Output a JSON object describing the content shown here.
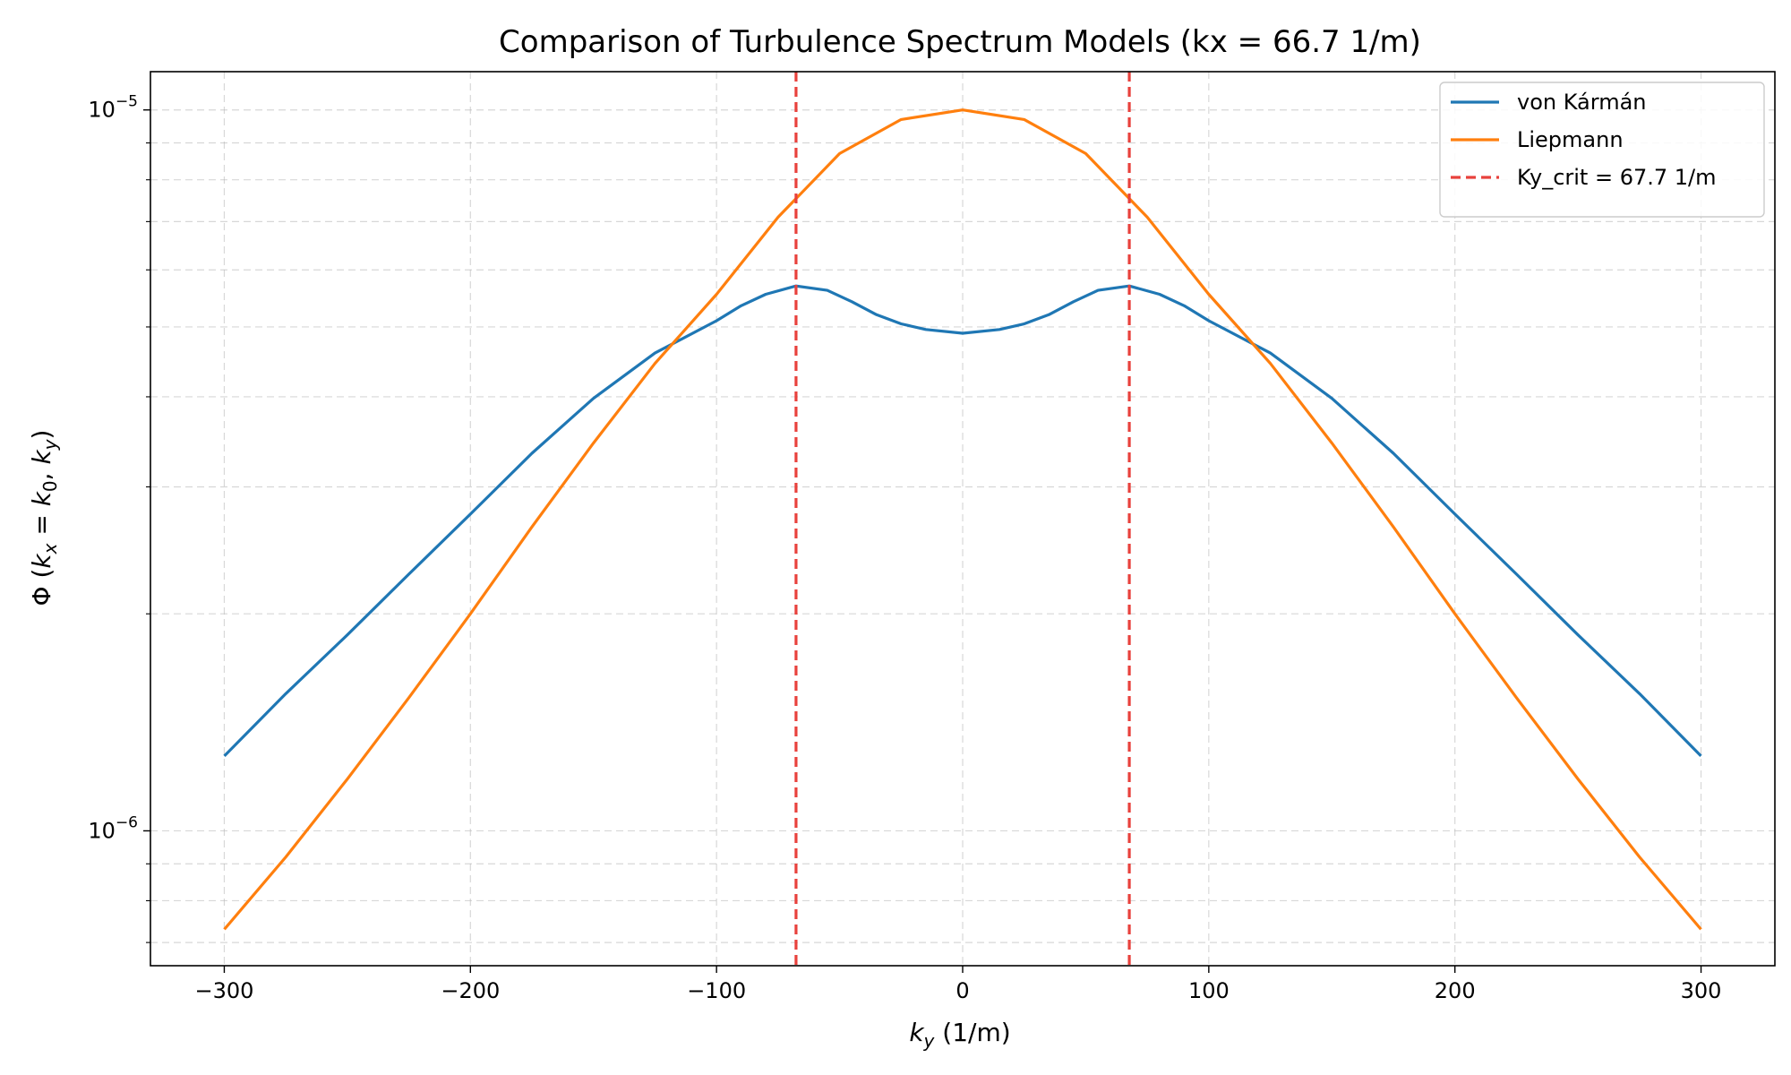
{
  "chart_data": {
    "type": "line",
    "title": "Comparison of Turbulence Spectrum Models (kx = 66.7 1/m)",
    "xlabel": {
      "symbol": "k",
      "sub": "y",
      "unit": " (1/m)"
    },
    "ylabel": {
      "prefix": "Φ (",
      "k1": "k",
      "s1": "x",
      "eq": " = ",
      "k0": "k",
      "s0": "0",
      "sep": ", ",
      "k2": "k",
      "s2": "y",
      "suffix": ")"
    },
    "x_scale": "linear",
    "y_scale": "log",
    "xlim": [
      -330,
      330
    ],
    "ylim": [
      6.5e-07,
      1.13e-05
    ],
    "x_ticks": [
      -300,
      -200,
      -100,
      0,
      100,
      200,
      300
    ],
    "x_tick_labels": [
      "−300",
      "−200",
      "−100",
      "0",
      "100",
      "200",
      "300"
    ],
    "y_major_ticks": [
      {
        "value": 1e-06,
        "base": "10",
        "exp": "−6"
      },
      {
        "value": 1e-05,
        "base": "10",
        "exp": "−5"
      }
    ],
    "y_minor_ticks": [
      7e-07,
      8e-07,
      9e-07,
      2e-06,
      3e-06,
      4e-06,
      5e-06,
      6e-06,
      7e-06,
      8e-06,
      9e-06
    ],
    "grid": true,
    "legend_position": "top-right",
    "series": [
      {
        "name": "von Kármán",
        "color": "#1f77b4",
        "x": [
          -300,
          -275,
          -250,
          -225,
          -200,
          -175,
          -150,
          -125,
          -100,
          -90,
          -80,
          -67.7,
          -55,
          -45,
          -35,
          -25,
          -15,
          0,
          15,
          25,
          35,
          45,
          55,
          67.7,
          80,
          90,
          100,
          125,
          150,
          175,
          200,
          225,
          250,
          275,
          300
        ],
        "y": [
          1.27e-06,
          1.55e-06,
          1.87e-06,
          2.27e-06,
          2.75e-06,
          3.34e-06,
          3.98e-06,
          4.6e-06,
          5.1e-06,
          5.35e-06,
          5.55e-06,
          5.7e-06,
          5.62e-06,
          5.42e-06,
          5.2e-06,
          5.05e-06,
          4.96e-06,
          4.9e-06,
          4.96e-06,
          5.05e-06,
          5.2e-06,
          5.42e-06,
          5.62e-06,
          5.7e-06,
          5.55e-06,
          5.35e-06,
          5.1e-06,
          4.6e-06,
          3.98e-06,
          3.34e-06,
          2.75e-06,
          2.27e-06,
          1.87e-06,
          1.55e-06,
          1.27e-06
        ]
      },
      {
        "name": "Liepmann",
        "color": "#ff7f0e",
        "x": [
          -300,
          -275,
          -250,
          -225,
          -200,
          -175,
          -150,
          -125,
          -100,
          -75,
          -50,
          -25,
          0,
          25,
          50,
          75,
          100,
          125,
          150,
          175,
          200,
          225,
          250,
          275,
          300
        ],
        "y": [
          7.3e-07,
          9.2e-07,
          1.18e-06,
          1.53e-06,
          2e-06,
          2.64e-06,
          3.45e-06,
          4.45e-06,
          5.55e-06,
          7.1e-06,
          8.7e-06,
          9.7e-06,
          1e-05,
          9.7e-06,
          8.7e-06,
          7.1e-06,
          5.55e-06,
          4.45e-06,
          3.45e-06,
          2.64e-06,
          2e-06,
          1.53e-06,
          1.18e-06,
          9.2e-07,
          7.3e-07
        ]
      }
    ],
    "vlines": [
      {
        "name": "Ky_crit = 67.7 1/m",
        "x": [
          -67.7,
          67.7
        ],
        "color": "#e8413c",
        "style": "dashed"
      }
    ]
  }
}
